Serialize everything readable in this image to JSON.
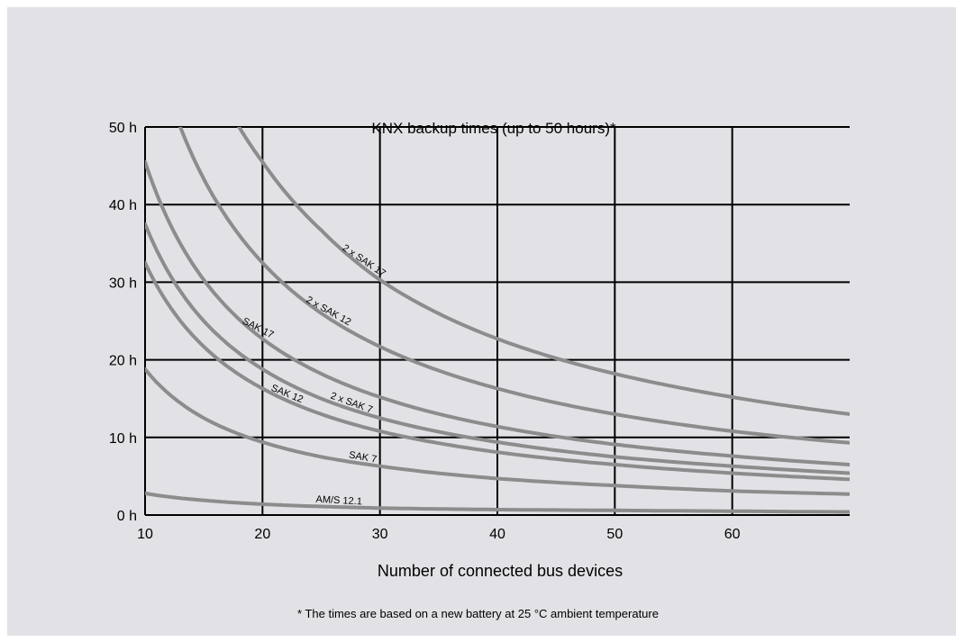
{
  "chart_data": {
    "type": "line",
    "title": "KNX backup times (up to 50 hours)*",
    "xlabel": "Number of connected bus devices",
    "ylabel": "",
    "xlim": [
      10,
      70
    ],
    "ylim": [
      0,
      50
    ],
    "x_ticks": [
      10,
      20,
      30,
      40,
      50,
      60
    ],
    "y_ticks": [
      0,
      10,
      20,
      30,
      40,
      50
    ],
    "y_tick_labels": [
      "0 h",
      "10 h",
      "20 h",
      "30 h",
      "40 h",
      "50 h"
    ],
    "grid": true,
    "series": [
      {
        "name": "2 x SAK 17",
        "x": [
          18,
          20,
          25,
          30,
          40,
          50,
          60,
          70
        ],
        "y": [
          50,
          45.5,
          36.7,
          30.3,
          22.7,
          18.2,
          15.2,
          13
        ]
      },
      {
        "name": "2 x SAK 12",
        "x": [
          13,
          15,
          20,
          25,
          30,
          40,
          50,
          60,
          70
        ],
        "y": [
          50,
          43.3,
          32.5,
          26,
          21.7,
          16.3,
          13,
          10.8,
          9.3
        ]
      },
      {
        "name": "SAK 17",
        "x": [
          10,
          15,
          20,
          25,
          30,
          40,
          50,
          60,
          70
        ],
        "y": [
          45.5,
          30.3,
          22.7,
          18.2,
          15.2,
          11.4,
          9.1,
          7.6,
          6.5
        ]
      },
      {
        "name": "2 x SAK 7",
        "x": [
          10,
          15,
          20,
          25,
          30,
          40,
          50,
          60,
          70
        ],
        "y": [
          37.5,
          25,
          18.8,
          15,
          12.5,
          9.4,
          7.5,
          6.3,
          5.4
        ]
      },
      {
        "name": "SAK 12",
        "x": [
          10,
          15,
          20,
          25,
          30,
          40,
          50,
          60,
          70
        ],
        "y": [
          32.5,
          21.7,
          16.3,
          13,
          10.8,
          8.1,
          6.5,
          5.4,
          4.6
        ]
      },
      {
        "name": "SAK 7",
        "x": [
          10,
          15,
          20,
          25,
          30,
          40,
          50,
          60,
          70
        ],
        "y": [
          18.8,
          12.5,
          9.4,
          7.5,
          6.3,
          4.7,
          3.8,
          3.1,
          2.7
        ]
      },
      {
        "name": "AM/S 12.1",
        "x": [
          10,
          15,
          20,
          25,
          30,
          40,
          50,
          60,
          70
        ],
        "y": [
          2.8,
          1.9,
          1.4,
          1.1,
          0.9,
          0.7,
          0.6,
          0.5,
          0.4
        ]
      }
    ],
    "color": "#8c8c8c"
  },
  "footnote": "* The times are based on a new battery at 25 °C ambient temperature"
}
